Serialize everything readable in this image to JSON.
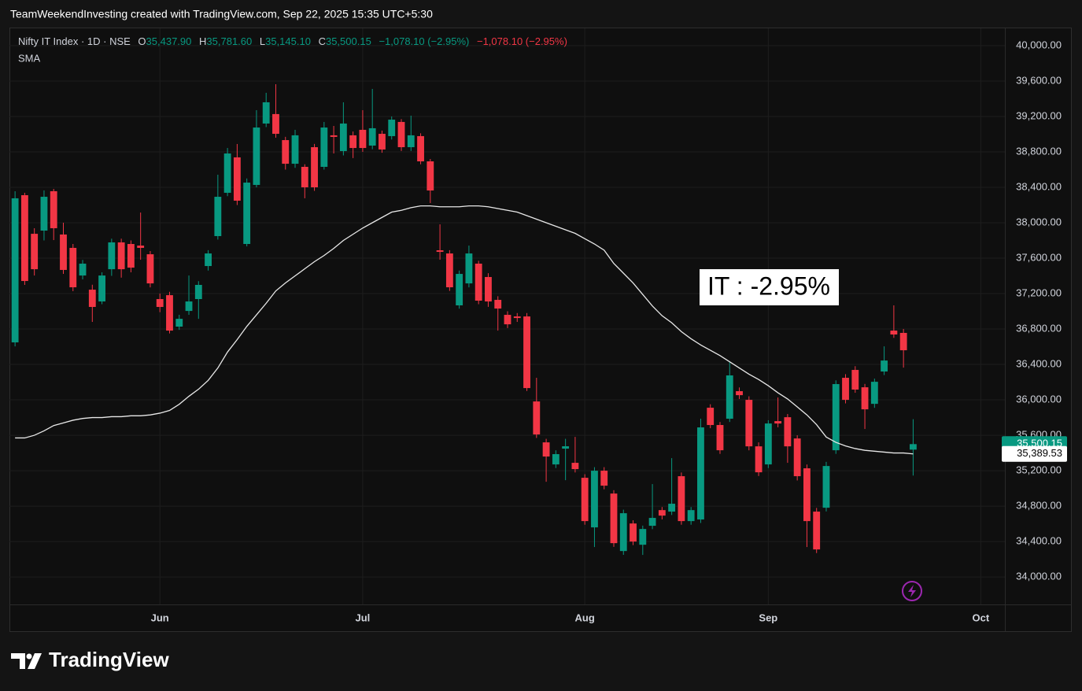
{
  "header": "TeamWeekendInvesting created with TradingView.com, Sep 22, 2025 15:35 UTC+5:30",
  "brand": "TradingView",
  "chart_data": {
    "type": "candlestick",
    "title": "Nifty IT Index · 1D · NSE",
    "legend_fields": [
      {
        "key": "O",
        "label": "35,437.90"
      },
      {
        "key": "H",
        "label": "35,781.60"
      },
      {
        "key": "L",
        "label": "35,145.10"
      },
      {
        "key": "C",
        "label": "35,500.15"
      }
    ],
    "change_label": "−1,078.10 (−2.95%)",
    "session_change_label": "−1,078.10 (−2.95%)",
    "indicator": "SMA",
    "annotation": "IT : -2.95%",
    "up_color": "#089981",
    "down_color": "#f23645",
    "sma_color": "#e8e8e8",
    "grid": true,
    "categories": [
      null,
      null,
      null,
      null,
      null,
      null,
      null,
      null,
      null,
      null,
      null,
      null,
      null,
      null,
      null,
      "Jun",
      null,
      null,
      null,
      null,
      null,
      null,
      null,
      null,
      null,
      null,
      null,
      null,
      null,
      null,
      null,
      null,
      null,
      null,
      null,
      null,
      "Jul",
      null,
      null,
      null,
      null,
      null,
      null,
      null,
      null,
      null,
      null,
      null,
      null,
      null,
      null,
      null,
      null,
      null,
      null,
      null,
      null,
      null,
      null,
      "Aug",
      null,
      null,
      null,
      null,
      null,
      null,
      null,
      null,
      null,
      null,
      null,
      null,
      null,
      null,
      null,
      null,
      null,
      null,
      "Sep",
      null,
      null,
      null,
      null,
      null,
      null,
      null,
      null,
      null,
      null,
      null,
      null,
      null,
      null,
      null,
      null,
      null,
      null,
      null,
      null,
      null,
      "Oct",
      null,
      null
    ],
    "open": [
      36649,
      38311,
      37875,
      37911,
      38356,
      37867,
      37716,
      37404,
      37244,
      37111,
      37475,
      37778,
      37760,
      37742,
      37644,
      37138,
      37182,
      36827,
      37004,
      37138,
      37511,
      37849,
      38338,
      38738,
      37760,
      38427,
      39120,
      39227,
      38933,
      38666,
      38631,
      38853,
      38631,
      38987,
      38809,
      38987,
      39049,
      38871,
      39004,
      38978,
      39138,
      38853,
      38978,
      38693,
      37689,
      37653,
      37067,
      37315,
      37538,
      37387,
      37129,
      36960,
      36942,
      36942,
      35982,
      35520,
      35271,
      35449,
      35289,
      35120,
      34560,
      35200,
      34942,
      34293,
      34604,
      34364,
      34578,
      34755,
      34738,
      35138,
      34631,
      34649,
      35911,
      35716,
      35787,
      36098,
      36000,
      35475,
      35271,
      35760,
      35804,
      35564,
      35227,
      34738,
      34782,
      35431,
      36249,
      36338,
      36142,
      35955,
      36320,
      36782,
      36756,
      35437.9,
      null,
      null,
      null,
      null,
      null,
      null,
      null,
      null,
      null
    ],
    "high": [
      38356,
      38338,
      37938,
      38365,
      38382,
      38000,
      37760,
      37580,
      37300,
      37440,
      37820,
      37820,
      37800,
      38115,
      37680,
      37200,
      37220,
      36960,
      37404,
      37340,
      37690,
      38542,
      38844,
      38889,
      38500,
      39271,
      39467,
      39564,
      38970,
      39049,
      38660,
      38890,
      39138,
      39093,
      39360,
      39030,
      39271,
      39511,
      39040,
      39200,
      39170,
      39209,
      39010,
      38720,
      37982,
      37690,
      37460,
      37742,
      37570,
      37430,
      37170,
      37000,
      36980,
      36980,
      36249,
      35560,
      35430,
      35560,
      35582,
      35160,
      35240,
      35240,
      34980,
      34760,
      34640,
      34580,
      35049,
      34790,
      35342,
      35180,
      34790,
      35787,
      35950,
      35750,
      36427,
      36140,
      36040,
      35520,
      35770,
      36027,
      35840,
      35600,
      35270,
      34780,
      35300,
      36220,
      36290,
      36380,
      36180,
      36240,
      36604,
      37067,
      36800,
      35781.6,
      null,
      null,
      null,
      null,
      null,
      null,
      null,
      null,
      null
    ],
    "low": [
      36604,
      37298,
      37404,
      37800,
      37804,
      37422,
      37227,
      37360,
      36880,
      37080,
      37400,
      37380,
      37440,
      37582,
      37270,
      36990,
      36750,
      36790,
      36960,
      36915,
      37460,
      37810,
      38300,
      38200,
      37733,
      38400,
      39080,
      38960,
      38600,
      38620,
      38276,
      38360,
      38600,
      38782,
      38760,
      38730,
      38800,
      38830,
      38790,
      38940,
      38810,
      38810,
      38660,
      38222,
      37582,
      37230,
      37030,
      37270,
      37080,
      37050,
      36782,
      36810,
      36880,
      36100,
      35570,
      35075,
      35230,
      35093,
      35180,
      34590,
      34338,
      34990,
      34340,
      34250,
      34360,
      34249,
      34540,
      34650,
      34700,
      34590,
      34590,
      34610,
      35680,
      35390,
      35750,
      36010,
      35430,
      35140,
      35230,
      35690,
      35289,
      35090,
      34338,
      34270,
      34740,
      35390,
      35960,
      36080,
      35671,
      35910,
      36280,
      36700,
      36364,
      35145.1,
      null,
      null,
      null,
      null,
      null,
      null,
      null,
      null,
      null
    ],
    "close": [
      38276,
      37342,
      37475,
      38293,
      37938,
      37467,
      37271,
      37538,
      37049,
      37404,
      37778,
      37475,
      37493,
      37716,
      37315,
      37049,
      36782,
      36915,
      37111,
      37298,
      37653,
      38293,
      38782,
      38249,
      38453,
      39075,
      39360,
      39004,
      38666,
      38987,
      38400,
      38400,
      39075,
      38969,
      39120,
      38844,
      38844,
      39067,
      38827,
      39164,
      38853,
      38987,
      38693,
      38364,
      37671,
      37271,
      37422,
      37653,
      37120,
      37111,
      37031,
      36853,
      36924,
      36133,
      35609,
      35360,
      35387,
      35476,
      35218,
      34631,
      35200,
      35031,
      34382,
      34720,
      34400,
      34542,
      34667,
      34693,
      34827,
      34631,
      34755,
      35689,
      35716,
      35431,
      36276,
      36053,
      35475,
      35182,
      35733,
      35733,
      35475,
      35138,
      34631,
      34311,
      35253,
      36178,
      36000,
      36116,
      35893,
      36204,
      36444,
      36738,
      36560,
      35500.15,
      null,
      null,
      null,
      null,
      null,
      null,
      null,
      null,
      null
    ],
    "sma": [
      35570,
      35570,
      35600,
      35650,
      35710,
      35740,
      35770,
      35790,
      35800,
      35800,
      35810,
      35810,
      35820,
      35820,
      35830,
      35850,
      35880,
      35950,
      36040,
      36120,
      36220,
      36360,
      36540,
      36680,
      36830,
      36960,
      37090,
      37230,
      37320,
      37400,
      37480,
      37560,
      37630,
      37710,
      37800,
      37870,
      37940,
      38000,
      38060,
      38120,
      38140,
      38170,
      38190,
      38190,
      38180,
      38180,
      38180,
      38190,
      38190,
      38180,
      38160,
      38140,
      38120,
      38080,
      38040,
      38000,
      37960,
      37920,
      37880,
      37820,
      37760,
      37690,
      37540,
      37430,
      37320,
      37190,
      37060,
      36950,
      36870,
      36770,
      36690,
      36620,
      36560,
      36500,
      36430,
      36360,
      36290,
      36230,
      36160,
      36080,
      36010,
      35920,
      35830,
      35720,
      35580,
      35520,
      35480,
      35450,
      35430,
      35420,
      35410,
      35400,
      35400,
      35389.53,
      null,
      null,
      null,
      null,
      null,
      null,
      null,
      null,
      null
    ],
    "last_price_label": "35,500.15",
    "sma_last_label": "35,389.53",
    "ylim": [
      33690,
      40195
    ],
    "yticks": [
      {
        "value": 34000,
        "label": "34,000.00"
      },
      {
        "value": 34400,
        "label": "34,400.00"
      },
      {
        "value": 34800,
        "label": "34,800.00"
      },
      {
        "value": 35200,
        "label": "35,200.00"
      },
      {
        "value": 35600,
        "label": "35,600.00"
      },
      {
        "value": 36000,
        "label": "36,000.00"
      },
      {
        "value": 36400,
        "label": "36,400.00"
      },
      {
        "value": 36800,
        "label": "36,800.00"
      },
      {
        "value": 37200,
        "label": "37,200.00"
      },
      {
        "value": 37600,
        "label": "37,600.00"
      },
      {
        "value": 38000,
        "label": "38,000.00"
      },
      {
        "value": 38400,
        "label": "38,400.00"
      },
      {
        "value": 38800,
        "label": "38,800.00"
      },
      {
        "value": 39200,
        "label": "39,200.00"
      },
      {
        "value": 39600,
        "label": "39,600.00"
      },
      {
        "value": 40000,
        "label": "40,000.00"
      }
    ]
  }
}
